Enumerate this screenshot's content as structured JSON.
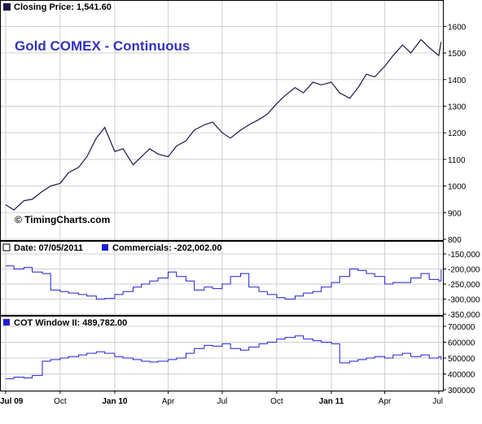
{
  "colors": {
    "price_line": "#1a1a4a",
    "indicator_line": "#2020d0",
    "title_text": "#3333bb",
    "grid": "#cfcfcf",
    "frame": "#000000"
  },
  "chart_data": [
    {
      "type": "line",
      "panel": "price",
      "title": "Gold COMEX - Continuous",
      "header_label": "Closing Price: 1,541.60",
      "watermark": "© TimingCharts.com",
      "ylim": [
        800,
        1650
      ],
      "yticks": [
        800,
        900,
        1000,
        1100,
        1200,
        1300,
        1400,
        1500,
        1600
      ],
      "x": [
        "2009-07-01",
        "2009-07-15",
        "2009-08-01",
        "2009-08-15",
        "2009-09-01",
        "2009-09-15",
        "2009-10-01",
        "2009-10-15",
        "2009-11-01",
        "2009-11-15",
        "2009-12-01",
        "2009-12-15",
        "2010-01-01",
        "2010-01-15",
        "2010-02-01",
        "2010-02-15",
        "2010-03-01",
        "2010-03-15",
        "2010-04-01",
        "2010-04-15",
        "2010-05-01",
        "2010-05-15",
        "2010-06-01",
        "2010-06-15",
        "2010-07-01",
        "2010-07-15",
        "2010-08-01",
        "2010-08-15",
        "2010-09-01",
        "2010-09-15",
        "2010-10-01",
        "2010-10-15",
        "2010-11-01",
        "2010-11-15",
        "2010-12-01",
        "2010-12-15",
        "2011-01-01",
        "2011-01-15",
        "2011-02-01",
        "2011-02-15",
        "2011-03-01",
        "2011-03-15",
        "2011-04-01",
        "2011-04-15",
        "2011-05-01",
        "2011-05-15",
        "2011-06-01",
        "2011-06-15",
        "2011-07-01",
        "2011-07-05"
      ],
      "y": [
        930,
        910,
        945,
        950,
        980,
        1000,
        1010,
        1050,
        1070,
        1110,
        1180,
        1220,
        1130,
        1140,
        1080,
        1110,
        1140,
        1120,
        1110,
        1150,
        1170,
        1210,
        1230,
        1240,
        1200,
        1180,
        1210,
        1230,
        1250,
        1270,
        1310,
        1340,
        1370,
        1350,
        1390,
        1380,
        1390,
        1350,
        1330,
        1370,
        1420,
        1410,
        1450,
        1490,
        1530,
        1500,
        1550,
        1520,
        1490,
        1541.6
      ]
    },
    {
      "type": "line",
      "panel": "commercials",
      "header_date": "Date: 07/05/2011",
      "header_label": "Commercials: -202,002.00",
      "ylim": [
        -350000,
        -150000
      ],
      "ytick_labels": [
        "-150,000",
        "-200,000",
        "-250,000",
        "-300,000",
        "-350,000"
      ],
      "yticks": [
        -150000,
        -200000,
        -250000,
        -300000,
        -350000
      ],
      "x": [
        "2009-07-01",
        "2009-07-15",
        "2009-08-01",
        "2009-08-15",
        "2009-09-01",
        "2009-09-15",
        "2009-10-01",
        "2009-10-15",
        "2009-11-01",
        "2009-11-15",
        "2009-12-01",
        "2009-12-15",
        "2010-01-01",
        "2010-01-15",
        "2010-02-01",
        "2010-02-15",
        "2010-03-01",
        "2010-03-15",
        "2010-04-01",
        "2010-04-15",
        "2010-05-01",
        "2010-05-15",
        "2010-06-01",
        "2010-06-15",
        "2010-07-01",
        "2010-07-15",
        "2010-08-01",
        "2010-08-15",
        "2010-09-01",
        "2010-09-15",
        "2010-10-01",
        "2010-10-15",
        "2010-11-01",
        "2010-11-15",
        "2010-12-01",
        "2010-12-15",
        "2011-01-01",
        "2011-01-15",
        "2011-02-01",
        "2011-02-15",
        "2011-03-01",
        "2011-03-15",
        "2011-04-01",
        "2011-04-15",
        "2011-05-01",
        "2011-05-15",
        "2011-06-01",
        "2011-06-15",
        "2011-07-01",
        "2011-07-05"
      ],
      "y": [
        -190000,
        -200000,
        -195000,
        -210000,
        -215000,
        -270000,
        -275000,
        -280000,
        -285000,
        -290000,
        -300000,
        -298000,
        -285000,
        -275000,
        -260000,
        -250000,
        -240000,
        -230000,
        -210000,
        -225000,
        -240000,
        -270000,
        -260000,
        -265000,
        -250000,
        -225000,
        -215000,
        -260000,
        -275000,
        -285000,
        -295000,
        -300000,
        -290000,
        -280000,
        -275000,
        -260000,
        -245000,
        -225000,
        -200000,
        -205000,
        -215000,
        -225000,
        -250000,
        -245000,
        -245000,
        -230000,
        -215000,
        -235000,
        -240000,
        -202002
      ]
    },
    {
      "type": "line",
      "panel": "cot_window",
      "header_label": "COT Window II: 489,782.00",
      "ylim": [
        300000,
        700000
      ],
      "ytick_labels": [
        "700000",
        "600000",
        "500000",
        "400000",
        "300000"
      ],
      "yticks": [
        700000,
        600000,
        500000,
        400000,
        300000
      ],
      "x": [
        "2009-07-01",
        "2009-07-15",
        "2009-08-01",
        "2009-08-15",
        "2009-09-01",
        "2009-09-15",
        "2009-10-01",
        "2009-10-15",
        "2009-11-01",
        "2009-11-15",
        "2009-12-01",
        "2009-12-15",
        "2010-01-01",
        "2010-01-15",
        "2010-02-01",
        "2010-02-15",
        "2010-03-01",
        "2010-03-15",
        "2010-04-01",
        "2010-04-15",
        "2010-05-01",
        "2010-05-15",
        "2010-06-01",
        "2010-06-15",
        "2010-07-01",
        "2010-07-15",
        "2010-08-01",
        "2010-08-15",
        "2010-09-01",
        "2010-09-15",
        "2010-10-01",
        "2010-10-15",
        "2010-11-01",
        "2010-11-15",
        "2010-12-01",
        "2010-12-15",
        "2011-01-01",
        "2011-01-15",
        "2011-02-01",
        "2011-02-15",
        "2011-03-01",
        "2011-03-15",
        "2011-04-01",
        "2011-04-15",
        "2011-05-01",
        "2011-05-15",
        "2011-06-01",
        "2011-06-15",
        "2011-07-01",
        "2011-07-05"
      ],
      "y": [
        370000,
        380000,
        375000,
        390000,
        480000,
        490000,
        500000,
        510000,
        520000,
        530000,
        540000,
        530000,
        510000,
        500000,
        490000,
        480000,
        475000,
        480000,
        490000,
        500000,
        530000,
        560000,
        580000,
        575000,
        590000,
        560000,
        550000,
        570000,
        590000,
        600000,
        620000,
        630000,
        640000,
        620000,
        610000,
        600000,
        590000,
        470000,
        480000,
        490000,
        500000,
        510000,
        500000,
        520000,
        530000,
        510000,
        520000,
        500000,
        510000,
        489782
      ]
    }
  ],
  "x_axis": {
    "tick_labels": [
      "Jul 09",
      "Oct",
      "Jan 10",
      "Apr",
      "Jul",
      "Oct",
      "Jan 11",
      "Apr",
      "Jul"
    ],
    "tick_dates": [
      "2009-07-01",
      "2009-10-01",
      "2010-01-01",
      "2010-04-01",
      "2010-07-01",
      "2010-10-01",
      "2011-01-01",
      "2011-04-01",
      "2011-07-01"
    ],
    "bold_labels": [
      "Jul 09",
      "Jan 10",
      "Jan 11"
    ]
  }
}
